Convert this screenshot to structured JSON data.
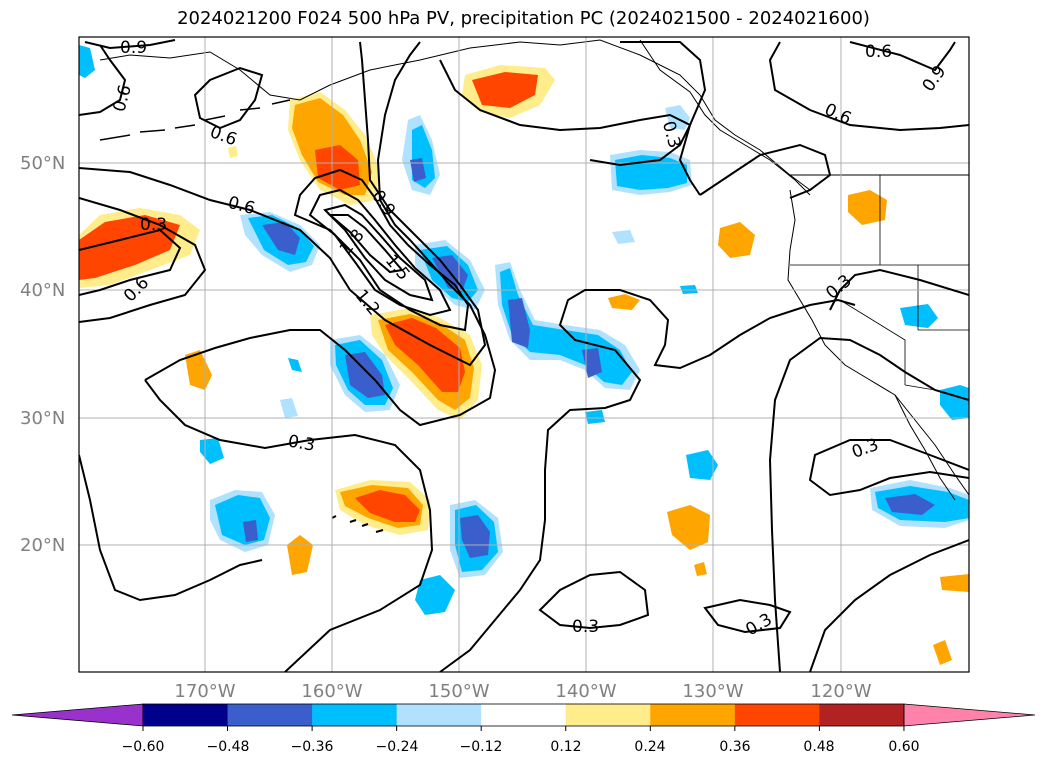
{
  "title": "2024021200 F024 500 hPa PV, precipitation PC (2024021500 - 2024021600)",
  "lat_labels": [
    "50°N",
    "40°N",
    "30°N",
    "20°N"
  ],
  "lon_labels": [
    "170°W",
    "160°W",
    "150°W",
    "140°W",
    "130°W",
    "120°W"
  ],
  "colorbar": {
    "ticks": [
      "−0.60",
      "−0.48",
      "−0.36",
      "−0.24",
      "−0.12",
      "0.12",
      "0.24",
      "0.36",
      "0.48",
      "0.60"
    ],
    "colors": [
      "#9932cc",
      "#00008b",
      "#3a5fcd",
      "#00bfff",
      "#b0e2ff",
      "#ffffff",
      "#ffec8b",
      "#ffa500",
      "#ff4500",
      "#b22222",
      "#ff82ab"
    ]
  },
  "contour_labels": [
    {
      "text": "0.9"
    },
    {
      "text": "0.6"
    },
    {
      "text": "0.6"
    },
    {
      "text": "0.6"
    },
    {
      "text": "0.3"
    },
    {
      "text": "0.6"
    },
    {
      "text": "0.9"
    },
    {
      "text": "1.8"
    },
    {
      "text": "1.5"
    },
    {
      "text": "1.2"
    },
    {
      "text": "0.3"
    },
    {
      "text": "0.6"
    },
    {
      "text": "0.9"
    },
    {
      "text": "0.3"
    },
    {
      "text": "0.3"
    },
    {
      "text": "0.3"
    },
    {
      "text": "0.3"
    },
    {
      "text": "0.3"
    },
    {
      "text": "0.6"
    }
  ]
}
